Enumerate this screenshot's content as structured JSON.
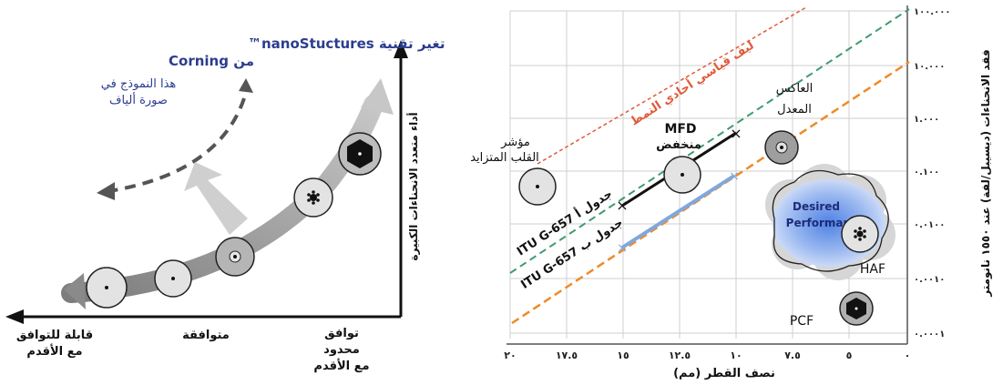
{
  "left_panel": {
    "title_line1": "تغير تقنية nanoStuctures™",
    "title_line2": "من Corning",
    "subtitle_line1": "هذا النموذج في",
    "subtitle_line2": "صورة ألياف",
    "y_axis_label": "أداء متعدد الانحناءات الكبيرة",
    "x_labels": [
      {
        "line1": "قابلة للتوافق",
        "line2": "مع الأقدم",
        "line3": ""
      },
      {
        "line1": "متوافقة",
        "line2": "",
        "line3": ""
      },
      {
        "line1": "توافق",
        "line2": "محدود",
        "line3": "مع الأقدم"
      }
    ]
  },
  "right_panel": {
    "x_axis_title": "نصف القطر (مم)",
    "x_ticks": [
      "٢٠",
      "١٧.٥",
      "١٥",
      "١٢.٥",
      "١٠",
      "٧.٥",
      "٥",
      "٠"
    ],
    "y_ticks": [
      "١٠٠.٠٠٠",
      "١٠.٠٠٠",
      "١.٠٠٠",
      "٠.١٠٠",
      "٠.٠١٠٠",
      "٠.٠٠١٠",
      "٠.٠٠٠١"
    ],
    "y_axis_title": "فقد الانحناءات (ديسيبل/لفة) عند ١٥٥٠ نانومتر",
    "red_line_label": "ليف قياسي أحادي النمط",
    "itu_a_label": "ITU G-657 جدول أ",
    "itu_b_label": "ITU G-657 جدول ب",
    "mfd_label_line1": "MFD",
    "mfd_label_line2": "منخفض",
    "trench_label_line1": "العاكس",
    "trench_label_line2": "المعدل",
    "step_label_line1": "مؤشر",
    "step_label_line2": "القلب المتزايد",
    "desired_line1": "Desired",
    "desired_line2": "Performance",
    "haf_label": "HAF",
    "pcf_label": "PCF",
    "colors": {
      "red_line": "#e05a3a",
      "green_line": "#3f9a6e",
      "orange_line": "#f08a2a",
      "blue_line": "#7fa8dc",
      "cloud": "#5f8fe0",
      "title_blue": "#2b3d8f"
    }
  }
}
